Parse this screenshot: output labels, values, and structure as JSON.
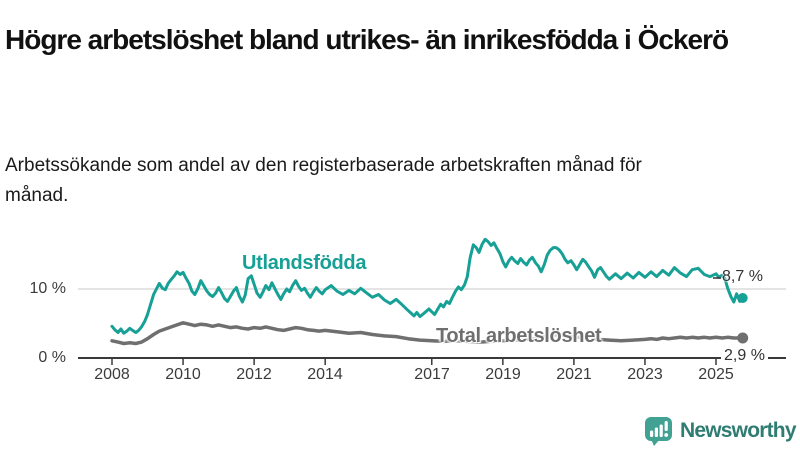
{
  "header": {
    "title": "Högre arbetslöshet bland utrikes- än inrikesfödda i Öckerö",
    "subtitle": "Arbetssökande som andel av den registerbaserade arbetskraften månad för månad."
  },
  "footer": {
    "brand": "Newsworthy",
    "logo_icon": "bar-chart-speech-bubble-icon"
  },
  "colors": {
    "accent_teal": "#17a096",
    "series_gray": "#6f6f6f",
    "axis": "#3a3a3a",
    "grid": "#dcdcdc",
    "text": "#111111",
    "brand_text": "#2f7c72",
    "brand_logo": "#41a193"
  },
  "chart_data": {
    "type": "line",
    "title": "Högre arbetslöshet bland utrikes- än inrikesfödda i Öckerö",
    "subtitle": "Arbetssökande som andel av den registerbaserade arbetskraften månad för månad.",
    "xlabel": "",
    "ylabel": "",
    "unit": "%",
    "grid": "horizontal line at 10 % only",
    "legend_position": "inline labels on lines",
    "xlim": [
      2008,
      2025.75
    ],
    "ylim": [
      0,
      18.5
    ],
    "x_ticks": [
      2008,
      2010,
      2012,
      2014,
      2017,
      2019,
      2021,
      2023,
      2025
    ],
    "x_tick_labels": [
      "2008",
      "2010",
      "2012",
      "2014",
      "2017",
      "2019",
      "2021",
      "2023",
      "2025"
    ],
    "y_ticks": [
      0,
      10
    ],
    "y_tick_labels": [
      "0 %",
      "10 %"
    ],
    "series": [
      {
        "id": "utlandsfodda",
        "name": "Utlandsfödda",
        "color": "#17a096",
        "end_label": "8,7 %",
        "end_value": 8.7,
        "points": [
          [
            2008.0,
            4.6
          ],
          [
            2008.08,
            4.1
          ],
          [
            2008.17,
            3.7
          ],
          [
            2008.25,
            4.2
          ],
          [
            2008.33,
            3.6
          ],
          [
            2008.42,
            3.9
          ],
          [
            2008.5,
            4.3
          ],
          [
            2008.58,
            4.0
          ],
          [
            2008.67,
            3.7
          ],
          [
            2008.75,
            4.0
          ],
          [
            2008.83,
            4.5
          ],
          [
            2008.92,
            5.3
          ],
          [
            2009.0,
            6.3
          ],
          [
            2009.08,
            7.7
          ],
          [
            2009.17,
            9.2
          ],
          [
            2009.25,
            10.0
          ],
          [
            2009.33,
            10.8
          ],
          [
            2009.42,
            10.1
          ],
          [
            2009.5,
            9.9
          ],
          [
            2009.58,
            10.8
          ],
          [
            2009.67,
            11.4
          ],
          [
            2009.75,
            11.9
          ],
          [
            2009.83,
            12.5
          ],
          [
            2009.92,
            12.1
          ],
          [
            2010.0,
            12.4
          ],
          [
            2010.08,
            11.6
          ],
          [
            2010.17,
            10.8
          ],
          [
            2010.25,
            9.7
          ],
          [
            2010.33,
            9.2
          ],
          [
            2010.42,
            10.1
          ],
          [
            2010.5,
            11.2
          ],
          [
            2010.58,
            10.5
          ],
          [
            2010.67,
            9.7
          ],
          [
            2010.75,
            9.2
          ],
          [
            2010.83,
            8.9
          ],
          [
            2010.92,
            9.4
          ],
          [
            2011.0,
            10.2
          ],
          [
            2011.08,
            9.5
          ],
          [
            2011.17,
            8.6
          ],
          [
            2011.25,
            8.2
          ],
          [
            2011.33,
            8.9
          ],
          [
            2011.42,
            9.7
          ],
          [
            2011.5,
            10.2
          ],
          [
            2011.58,
            9.0
          ],
          [
            2011.67,
            8.1
          ],
          [
            2011.75,
            9.1
          ],
          [
            2011.83,
            11.5
          ],
          [
            2011.92,
            11.9
          ],
          [
            2012.0,
            10.7
          ],
          [
            2012.08,
            9.4
          ],
          [
            2012.17,
            8.8
          ],
          [
            2012.25,
            9.6
          ],
          [
            2012.33,
            10.5
          ],
          [
            2012.42,
            9.9
          ],
          [
            2012.5,
            10.9
          ],
          [
            2012.58,
            10.1
          ],
          [
            2012.67,
            9.2
          ],
          [
            2012.75,
            8.5
          ],
          [
            2012.83,
            9.3
          ],
          [
            2012.92,
            10.0
          ],
          [
            2013.0,
            9.6
          ],
          [
            2013.08,
            10.5
          ],
          [
            2013.17,
            11.2
          ],
          [
            2013.25,
            10.4
          ],
          [
            2013.33,
            9.8
          ],
          [
            2013.42,
            10.1
          ],
          [
            2013.5,
            9.4
          ],
          [
            2013.58,
            8.8
          ],
          [
            2013.67,
            9.6
          ],
          [
            2013.75,
            10.2
          ],
          [
            2013.83,
            9.7
          ],
          [
            2013.92,
            9.3
          ],
          [
            2014.0,
            9.9
          ],
          [
            2014.17,
            10.5
          ],
          [
            2014.33,
            9.7
          ],
          [
            2014.5,
            9.2
          ],
          [
            2014.67,
            9.8
          ],
          [
            2014.83,
            9.3
          ],
          [
            2015.0,
            10.1
          ],
          [
            2015.17,
            9.4
          ],
          [
            2015.33,
            8.8
          ],
          [
            2015.5,
            9.2
          ],
          [
            2015.67,
            8.4
          ],
          [
            2015.83,
            7.9
          ],
          [
            2016.0,
            8.5
          ],
          [
            2016.17,
            7.7
          ],
          [
            2016.33,
            6.9
          ],
          [
            2016.5,
            6.1
          ],
          [
            2016.58,
            6.6
          ],
          [
            2016.67,
            6.0
          ],
          [
            2016.83,
            6.7
          ],
          [
            2016.92,
            7.1
          ],
          [
            2017.0,
            6.7
          ],
          [
            2017.08,
            6.3
          ],
          [
            2017.17,
            7.1
          ],
          [
            2017.25,
            7.8
          ],
          [
            2017.33,
            7.4
          ],
          [
            2017.42,
            8.2
          ],
          [
            2017.5,
            7.9
          ],
          [
            2017.58,
            8.8
          ],
          [
            2017.67,
            9.7
          ],
          [
            2017.75,
            10.3
          ],
          [
            2017.83,
            9.9
          ],
          [
            2017.92,
            10.6
          ],
          [
            2018.0,
            11.8
          ],
          [
            2018.08,
            14.5
          ],
          [
            2018.17,
            16.4
          ],
          [
            2018.25,
            16.0
          ],
          [
            2018.33,
            15.3
          ],
          [
            2018.42,
            16.5
          ],
          [
            2018.5,
            17.2
          ],
          [
            2018.58,
            16.9
          ],
          [
            2018.67,
            16.3
          ],
          [
            2018.75,
            16.7
          ],
          [
            2018.83,
            15.9
          ],
          [
            2018.92,
            15.1
          ],
          [
            2019.0,
            14.0
          ],
          [
            2019.08,
            13.2
          ],
          [
            2019.17,
            14.1
          ],
          [
            2019.25,
            14.6
          ],
          [
            2019.33,
            14.1
          ],
          [
            2019.42,
            13.7
          ],
          [
            2019.5,
            14.4
          ],
          [
            2019.58,
            13.9
          ],
          [
            2019.67,
            13.5
          ],
          [
            2019.75,
            14.2
          ],
          [
            2019.83,
            14.6
          ],
          [
            2019.92,
            13.8
          ],
          [
            2020.0,
            13.3
          ],
          [
            2020.08,
            12.5
          ],
          [
            2020.17,
            13.6
          ],
          [
            2020.25,
            14.9
          ],
          [
            2020.33,
            15.6
          ],
          [
            2020.42,
            16.0
          ],
          [
            2020.5,
            16.0
          ],
          [
            2020.58,
            15.7
          ],
          [
            2020.67,
            15.1
          ],
          [
            2020.75,
            14.3
          ],
          [
            2020.83,
            13.8
          ],
          [
            2020.92,
            14.1
          ],
          [
            2021.0,
            13.5
          ],
          [
            2021.08,
            12.8
          ],
          [
            2021.17,
            13.6
          ],
          [
            2021.25,
            14.3
          ],
          [
            2021.33,
            13.9
          ],
          [
            2021.42,
            13.2
          ],
          [
            2021.5,
            12.6
          ],
          [
            2021.58,
            11.7
          ],
          [
            2021.67,
            12.8
          ],
          [
            2021.75,
            13.1
          ],
          [
            2021.83,
            12.5
          ],
          [
            2021.92,
            11.8
          ],
          [
            2022.0,
            11.4
          ],
          [
            2022.17,
            12.2
          ],
          [
            2022.33,
            11.5
          ],
          [
            2022.5,
            12.3
          ],
          [
            2022.67,
            11.6
          ],
          [
            2022.83,
            12.4
          ],
          [
            2023.0,
            11.7
          ],
          [
            2023.17,
            12.5
          ],
          [
            2023.33,
            11.8
          ],
          [
            2023.5,
            12.7
          ],
          [
            2023.67,
            12.0
          ],
          [
            2023.83,
            13.1
          ],
          [
            2024.0,
            12.3
          ],
          [
            2024.17,
            11.8
          ],
          [
            2024.33,
            12.8
          ],
          [
            2024.5,
            13.0
          ],
          [
            2024.67,
            12.1
          ],
          [
            2024.83,
            11.8
          ],
          [
            2025.0,
            12.2
          ],
          [
            2025.08,
            11.7
          ],
          [
            2025.17,
            12.0
          ],
          [
            2025.25,
            11.5
          ],
          [
            2025.33,
            10.1
          ],
          [
            2025.42,
            8.9
          ],
          [
            2025.5,
            8.1
          ],
          [
            2025.58,
            9.3
          ],
          [
            2025.67,
            8.2
          ],
          [
            2025.75,
            8.7
          ]
        ]
      },
      {
        "id": "total-arbetsloshet",
        "name": "Total arbetslöshet",
        "color": "#6f6f6f",
        "end_label": "2,9 %",
        "end_value": 2.9,
        "points": [
          [
            2008.0,
            2.5
          ],
          [
            2008.17,
            2.3
          ],
          [
            2008.33,
            2.1
          ],
          [
            2008.5,
            2.2
          ],
          [
            2008.67,
            2.1
          ],
          [
            2008.83,
            2.3
          ],
          [
            2009.0,
            2.8
          ],
          [
            2009.17,
            3.4
          ],
          [
            2009.33,
            3.9
          ],
          [
            2009.5,
            4.2
          ],
          [
            2009.67,
            4.5
          ],
          [
            2009.83,
            4.8
          ],
          [
            2010.0,
            5.1
          ],
          [
            2010.17,
            4.9
          ],
          [
            2010.33,
            4.7
          ],
          [
            2010.5,
            4.9
          ],
          [
            2010.67,
            4.8
          ],
          [
            2010.83,
            4.6
          ],
          [
            2011.0,
            4.8
          ],
          [
            2011.17,
            4.6
          ],
          [
            2011.33,
            4.4
          ],
          [
            2011.5,
            4.5
          ],
          [
            2011.67,
            4.3
          ],
          [
            2011.83,
            4.2
          ],
          [
            2012.0,
            4.4
          ],
          [
            2012.17,
            4.3
          ],
          [
            2012.33,
            4.5
          ],
          [
            2012.5,
            4.3
          ],
          [
            2012.67,
            4.1
          ],
          [
            2012.83,
            4.0
          ],
          [
            2013.0,
            4.2
          ],
          [
            2013.17,
            4.4
          ],
          [
            2013.33,
            4.3
          ],
          [
            2013.5,
            4.1
          ],
          [
            2013.67,
            4.0
          ],
          [
            2013.83,
            3.9
          ],
          [
            2014.0,
            4.0
          ],
          [
            2014.33,
            3.8
          ],
          [
            2014.67,
            3.6
          ],
          [
            2015.0,
            3.7
          ],
          [
            2015.33,
            3.4
          ],
          [
            2015.67,
            3.2
          ],
          [
            2016.0,
            3.1
          ],
          [
            2016.33,
            2.8
          ],
          [
            2016.67,
            2.6
          ],
          [
            2017.0,
            2.5
          ],
          [
            2017.33,
            2.4
          ],
          [
            2017.67,
            2.5
          ],
          [
            2018.0,
            2.4
          ],
          [
            2018.33,
            2.3
          ],
          [
            2018.67,
            2.4
          ],
          [
            2019.0,
            2.5
          ],
          [
            2019.33,
            2.6
          ],
          [
            2019.67,
            2.7
          ],
          [
            2020.0,
            2.8
          ],
          [
            2020.33,
            3.4
          ],
          [
            2020.67,
            3.3
          ],
          [
            2021.0,
            3.1
          ],
          [
            2021.33,
            2.9
          ],
          [
            2021.67,
            2.7
          ],
          [
            2022.0,
            2.6
          ],
          [
            2022.33,
            2.5
          ],
          [
            2022.67,
            2.6
          ],
          [
            2023.0,
            2.7
          ],
          [
            2023.17,
            2.8
          ],
          [
            2023.33,
            2.7
          ],
          [
            2023.5,
            2.9
          ],
          [
            2023.67,
            2.8
          ],
          [
            2023.83,
            2.9
          ],
          [
            2024.0,
            3.0
          ],
          [
            2024.17,
            2.9
          ],
          [
            2024.33,
            3.0
          ],
          [
            2024.5,
            2.9
          ],
          [
            2024.67,
            3.0
          ],
          [
            2024.83,
            2.9
          ],
          [
            2025.0,
            3.0
          ],
          [
            2025.17,
            2.9
          ],
          [
            2025.33,
            3.0
          ],
          [
            2025.5,
            2.9
          ],
          [
            2025.75,
            2.9
          ]
        ]
      }
    ]
  }
}
